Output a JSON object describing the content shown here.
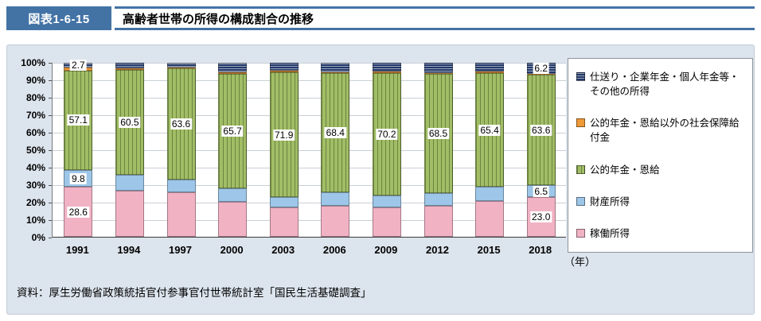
{
  "header": {
    "figure_label": "図表1-6-15",
    "title": "高齢者世帯の所得の構成割合の推移"
  },
  "colors": {
    "accent": "#4373a5",
    "panel_bg": "#dce4ed",
    "plot_bg": "#ffffff",
    "gridline": "#c9cfd6"
  },
  "source_note": "資料：厚生労働省政策統括官付参事官付世帯統計室「国民生活基礎調査」",
  "x_axis_unit": "（年）",
  "chart_data": {
    "type": "bar",
    "stacked": true,
    "percent_stacked": true,
    "title": "高齢者世帯の所得の構成割合の推移",
    "categories": [
      "1991",
      "1994",
      "1997",
      "2000",
      "2003",
      "2006",
      "2009",
      "2012",
      "2015",
      "2018"
    ],
    "series": [
      {
        "name": "稼働所得",
        "key": "earned",
        "color": "#f1b2c4",
        "pattern": "none",
        "values": [
          28.6,
          26.7,
          25.5,
          20.3,
          16.9,
          17.9,
          17.1,
          18.0,
          20.7,
          23.0
        ]
      },
      {
        "name": "財産所得",
        "key": "property",
        "color": "#9dc6e8",
        "pattern": "none",
        "values": [
          9.8,
          8.7,
          7.5,
          7.4,
          5.8,
          7.6,
          6.8,
          7.0,
          8.0,
          6.5
        ]
      },
      {
        "name": "公的年金・恩給",
        "key": "pension",
        "color": "#a1bd66",
        "pattern": "vertical-stripes",
        "values": [
          57.1,
          60.5,
          63.6,
          65.7,
          71.9,
          68.4,
          70.2,
          68.5,
          65.4,
          63.6
        ]
      },
      {
        "name": "公的年金・恩給以外の社会保障給付金",
        "key": "social",
        "color": "#ee9a38",
        "pattern": "none",
        "values": [
          1.8,
          0.9,
          0.7,
          1.0,
          0.8,
          0.7,
          0.7,
          0.7,
          0.8,
          0.7
        ]
      },
      {
        "name": "仕送り・企業年金・個人年金等・その他の所得",
        "key": "other",
        "color": "#23396a",
        "pattern": "horizontal-stripes",
        "values": [
          2.7,
          3.2,
          2.7,
          5.6,
          4.6,
          5.4,
          5.2,
          5.8,
          5.1,
          6.2
        ]
      }
    ],
    "shown_value_labels": {
      "1991": [
        "earned",
        "property",
        "pension",
        "other"
      ],
      "1994": [
        "pension"
      ],
      "1997": [
        "pension"
      ],
      "2000": [
        "pension"
      ],
      "2003": [
        "pension"
      ],
      "2006": [
        "pension"
      ],
      "2009": [
        "pension"
      ],
      "2012": [
        "pension"
      ],
      "2015": [
        "pension"
      ],
      "2018": [
        "earned",
        "property",
        "pension",
        "other"
      ]
    },
    "y_ticks": [
      "0%",
      "10%",
      "20%",
      "30%",
      "40%",
      "50%",
      "60%",
      "70%",
      "80%",
      "90%",
      "100%"
    ],
    "ylim": [
      0,
      100
    ],
    "grid": true,
    "legend_position": "right",
    "legend_order": [
      "other",
      "social",
      "pension",
      "property",
      "earned"
    ]
  }
}
